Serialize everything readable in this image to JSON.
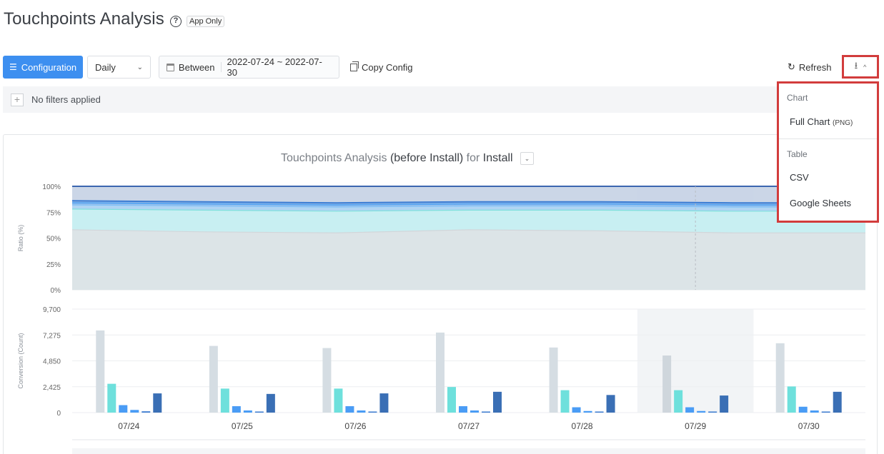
{
  "header": {
    "title": "Touchpoints Analysis",
    "help": "?",
    "badge": "App Only"
  },
  "toolbar": {
    "config_label": "Configuration",
    "interval_value": "Daily",
    "date_prefix": "Between",
    "date_range": "2022-07-24 ~ 2022-07-30",
    "copy_label": "Copy Config",
    "refresh_label": "Refresh"
  },
  "filters": {
    "plus": "+",
    "label": "No filters applied"
  },
  "chart_title": {
    "name": "Touchpoints Analysis",
    "mid": "(before Install)",
    "for": "for",
    "event": "Install"
  },
  "download_menu": {
    "chart_group": "Chart",
    "full_chart": "Full Chart",
    "full_chart_note": "(PNG)",
    "table_group": "Table",
    "csv": "CSV",
    "google_sheets": "Google Sheets"
  },
  "colors": {
    "accent": "#3d8ff0",
    "highlight_border": "#d23c3c",
    "grey_bar": "#d5dde3",
    "teal": "#6ee0dc",
    "blue": "#4a9cf5",
    "light_blue": "#3b7bd0",
    "dark_blue": "#3a6fb5"
  },
  "chart_data": [
    {
      "type": "area",
      "ylabel": "Ratio (%)",
      "ylim": [
        0,
        100
      ],
      "yticks": [
        "100%",
        "75%",
        "50%",
        "25%",
        "0%"
      ],
      "categories": [
        "07/24",
        "07/25",
        "07/26",
        "07/27",
        "07/28",
        "07/29",
        "07/30"
      ],
      "series": [
        {
          "values": [
            58,
            56,
            55,
            58,
            57,
            55,
            55
          ]
        },
        {
          "values": [
            78,
            77,
            76,
            77,
            77,
            76,
            76
          ]
        },
        {
          "values": [
            82,
            81,
            80,
            81,
            81,
            80,
            80
          ]
        },
        {
          "values": [
            84,
            83,
            82,
            83,
            83,
            82,
            82
          ]
        },
        {
          "values": [
            86,
            85,
            84,
            85,
            85,
            84,
            84
          ]
        },
        {
          "values": [
            100,
            100,
            100,
            100,
            100,
            100,
            100
          ]
        }
      ],
      "highlight_category": "07/29"
    },
    {
      "type": "bar",
      "ylabel": "Conversion (Count)",
      "ylim": [
        0,
        9700
      ],
      "yticks": [
        "9,700",
        "7,275",
        "4,850",
        "2,425",
        "0"
      ],
      "categories": [
        "07/24",
        "07/25",
        "07/26",
        "07/27",
        "07/28",
        "07/29",
        "07/30"
      ],
      "series": [
        {
          "values": [
            7700,
            6250,
            6050,
            7500,
            6100,
            5350,
            6500
          ]
        },
        {
          "values": [
            2700,
            2250,
            2250,
            2400,
            2100,
            2100,
            2450
          ]
        },
        {
          "values": [
            700,
            600,
            600,
            600,
            500,
            500,
            550
          ]
        },
        {
          "values": [
            250,
            200,
            200,
            200,
            150,
            150,
            200
          ]
        },
        {
          "values": [
            120,
            100,
            100,
            100,
            100,
            100,
            100
          ]
        },
        {
          "values": [
            1800,
            1750,
            1800,
            1950,
            1650,
            1600,
            1950
          ]
        }
      ],
      "highlight_category": "07/29"
    }
  ]
}
